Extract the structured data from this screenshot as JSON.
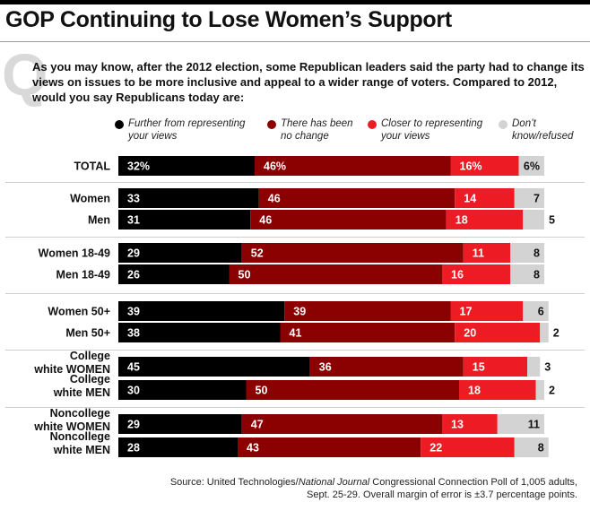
{
  "title": "GOP Continuing to Lose Women’s Support",
  "question_mark": "Q",
  "question": "As you may know, after the 2012 election,  some Republican leaders said the party had to change its views on issues to be more inclusive and appeal to a wider range of voters. Compared to 2012, would you say Republicans today are:",
  "source_prefix": "Source: United Technologies/",
  "source_italic": "National Journal",
  "source_suffix": " Congressional Connection Poll of 1,005 adults, Sept. 25-29. Overall margin of error is ±3.7 percentage points.",
  "colors": {
    "further": "#000000",
    "no_change": "#8b0000",
    "closer": "#ed1c24",
    "dont_know": "#d3d3d3"
  },
  "chart_data": {
    "type": "bar",
    "orientation": "horizontal",
    "stacked": true,
    "title": "GOP Continuing to Lose Women’s Support",
    "legend_placement": "top",
    "series": [
      {
        "name": "Further from representing your views",
        "values": [
          32,
          33,
          31,
          29,
          26,
          39,
          38,
          45,
          30,
          29,
          28
        ]
      },
      {
        "name": "There has been no change",
        "values": [
          46,
          46,
          46,
          52,
          50,
          39,
          41,
          36,
          50,
          47,
          43
        ]
      },
      {
        "name": "Closer to representing your views",
        "values": [
          16,
          14,
          18,
          11,
          16,
          17,
          20,
          15,
          18,
          13,
          22
        ]
      },
      {
        "name": "Don’t know/refused",
        "values": [
          6,
          7,
          5,
          8,
          8,
          6,
          2,
          3,
          2,
          11,
          8
        ]
      }
    ],
    "categories": [
      "TOTAL",
      "Women",
      "Men",
      "Women 18-49",
      "Men 18-49",
      "Women 50+",
      "Men 50+",
      "College white WOMEN",
      "College white MEN",
      "Noncollege white WOMEN",
      "Noncollege white MEN"
    ],
    "category_lines": [
      [
        "TOTAL"
      ],
      [
        "Women"
      ],
      [
        "Men"
      ],
      [
        "Women 18-49"
      ],
      [
        "Men 18-49"
      ],
      [
        "Women 50+"
      ],
      [
        "Men 50+"
      ],
      [
        "College",
        "white WOMEN"
      ],
      [
        "College",
        "white MEN"
      ],
      [
        "Noncollege",
        "white WOMEN"
      ],
      [
        "Noncollege",
        "white MEN"
      ]
    ],
    "percent_sign_on_first_row": true,
    "groups": [
      [
        0
      ],
      [
        1,
        2
      ],
      [
        3,
        4
      ],
      [
        5,
        6
      ],
      [
        7,
        8
      ],
      [
        9,
        10
      ]
    ]
  }
}
